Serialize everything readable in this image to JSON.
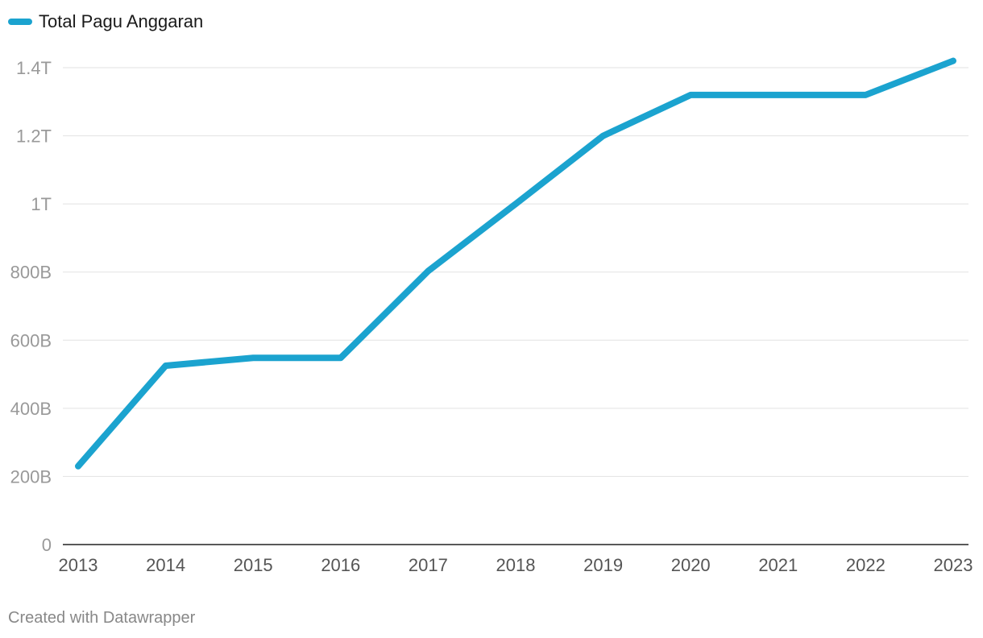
{
  "chart_data": {
    "type": "line",
    "categories": [
      "2013",
      "2014",
      "2015",
      "2016",
      "2017",
      "2018",
      "2019",
      "2020",
      "2021",
      "2022",
      "2023"
    ],
    "series": [
      {
        "name": "Total Pagu Anggaran",
        "values": [
          230000000000,
          525000000000,
          548000000000,
          548000000000,
          803000000000,
          1000000000000,
          1200000000000,
          1320000000000,
          1320000000000,
          1320000000000,
          1420000000000
        ],
        "color": "#1ba3cf"
      }
    ],
    "ylim": [
      0,
      1400000000000
    ],
    "y_ticks": [
      {
        "value": 0,
        "label": "0"
      },
      {
        "value": 200000000000,
        "label": "200B"
      },
      {
        "value": 400000000000,
        "label": "400B"
      },
      {
        "value": 600000000000,
        "label": "600B"
      },
      {
        "value": 800000000000,
        "label": "800B"
      },
      {
        "value": 1000000000000,
        "label": "1T"
      },
      {
        "value": 1200000000000,
        "label": "1.2T"
      },
      {
        "value": 1400000000000,
        "label": "1.4T"
      }
    ],
    "grid": true,
    "legend_position": "top-left"
  },
  "footer": "Created with Datawrapper"
}
